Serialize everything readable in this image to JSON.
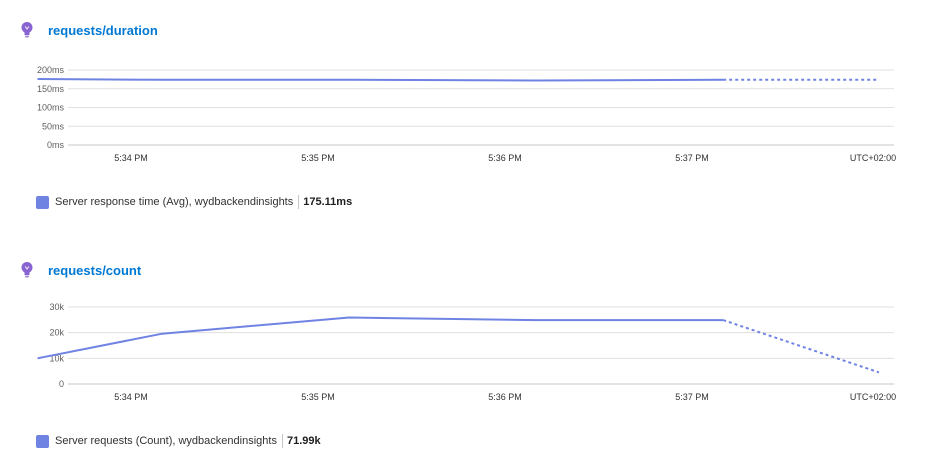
{
  "theme": {
    "accent": "#0078d4",
    "line_color": "#6f83e3",
    "bulb_color": "#8a63d2"
  },
  "panels": [
    {
      "title": "requests/duration",
      "icon": "lightbulb-icon",
      "legend": {
        "label": "Server response time (Avg), wydbackendinsights",
        "value": "175.11ms"
      },
      "timezone": "UTC+02:00"
    },
    {
      "title": "requests/count",
      "icon": "lightbulb-icon",
      "legend": {
        "label": "Server requests (Count), wydbackendinsights",
        "value": "71.99k"
      },
      "timezone": "UTC+02:00"
    }
  ],
  "chart_data": [
    {
      "type": "line",
      "title": "requests/duration",
      "x_ticks": [
        "5:34 PM",
        "5:35 PM",
        "5:36 PM",
        "5:37 PM"
      ],
      "y_ticks": [
        "0ms",
        "50ms",
        "100ms",
        "150ms",
        "200ms"
      ],
      "ylim": [
        0,
        200
      ],
      "grid": true,
      "legend_position": "bottom-left",
      "series": [
        {
          "name": "Server response time (Avg), wydbackendinsights",
          "x": [
            "5:33:30 PM",
            "5:34:10 PM",
            "5:35:10 PM",
            "5:36:10 PM",
            "5:37:10 PM"
          ],
          "y": [
            176,
            174,
            174,
            172,
            174
          ],
          "projected": {
            "x": [
              "5:37:10 PM",
              "5:38:00 PM"
            ],
            "y": [
              174,
              174
            ]
          }
        }
      ]
    },
    {
      "type": "line",
      "title": "requests/count",
      "x_ticks": [
        "5:34 PM",
        "5:35 PM",
        "5:36 PM",
        "5:37 PM"
      ],
      "y_ticks": [
        "0",
        "10k",
        "20k",
        "30k"
      ],
      "ylim": [
        0,
        30000
      ],
      "grid": true,
      "legend_position": "bottom-left",
      "series": [
        {
          "name": "Server requests (Count), wydbackendinsights",
          "x": [
            "5:33:30 PM",
            "5:34:10 PM",
            "5:35:10 PM",
            "5:36:10 PM",
            "5:37:10 PM"
          ],
          "y": [
            10000,
            19600,
            25900,
            24900,
            24900
          ],
          "projected": {
            "x": [
              "5:37:10 PM",
              "5:38:00 PM"
            ],
            "y": [
              24900,
              4500
            ]
          }
        }
      ]
    }
  ]
}
